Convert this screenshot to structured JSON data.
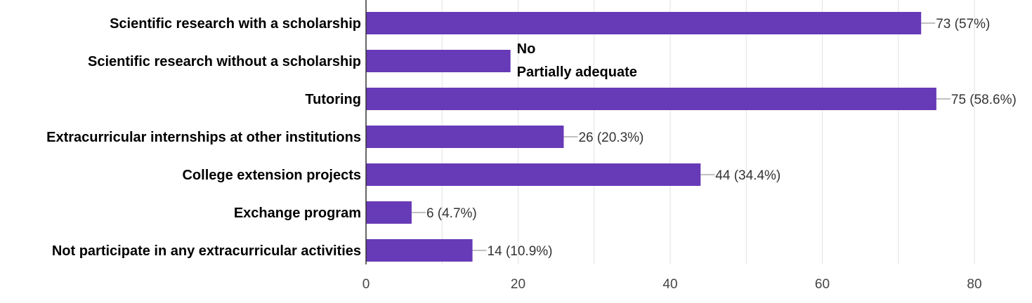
{
  "chart_data": {
    "type": "bar",
    "orientation": "horizontal",
    "categories": [
      "Scientific research with a scholarship",
      "Scientific research without a scholarship",
      "Tutoring",
      "Extracurricular internships at other institutions",
      "College extension projects",
      "Exchange program",
      "Not participate in any extracurricular activities"
    ],
    "values": [
      73,
      19,
      75,
      26,
      44,
      6,
      14
    ],
    "value_labels": [
      "73 (57%)",
      "",
      "75 (58.6%)",
      "26 (20.3%)",
      "44 (34.4%)",
      "6 (4.7%)",
      "14 (10.9%)"
    ],
    "overlay_annotations": [
      "No",
      "Partially adequate"
    ],
    "xlim": [
      0,
      80
    ],
    "xticks": [
      0,
      20,
      40,
      60,
      80
    ],
    "grid": true,
    "legend": "none",
    "bar_color": "#673ab7",
    "title": "",
    "xlabel": "",
    "ylabel": ""
  }
}
